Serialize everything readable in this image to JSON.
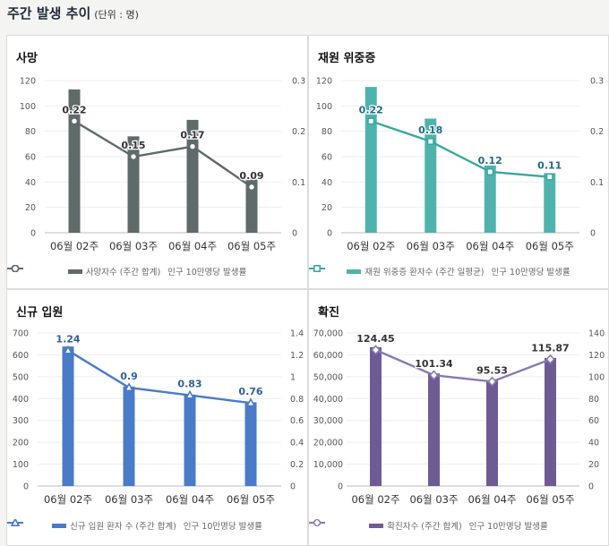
{
  "header": {
    "title": "주간 발생 추이",
    "unit": "(단위 : 명)"
  },
  "chart_data": [
    {
      "type": "bar",
      "title": "사망",
      "categories": [
        "06월 02주",
        "06월 03주",
        "06월 04주",
        "06월 05주"
      ],
      "series": [
        {
          "name": "사망자수 (주간 합계)",
          "type": "bar",
          "axis": "left",
          "values": [
            113,
            76,
            89,
            42
          ]
        },
        {
          "name": "인구 10만명당 발생률",
          "type": "line",
          "axis": "right",
          "values": [
            0.22,
            0.15,
            0.17,
            0.09
          ],
          "labels": [
            "0.22",
            "0.15",
            "0.17",
            "0.09"
          ]
        }
      ],
      "y_left": {
        "min": 0,
        "max": 120,
        "step": 20,
        "ticks": [
          "0",
          "20",
          "40",
          "60",
          "80",
          "100",
          "120"
        ]
      },
      "y_right": {
        "min": 0,
        "max": 0.3,
        "step": 0.1,
        "ticks": [
          "0",
          "0.1",
          "0.2",
          "0.3"
        ]
      },
      "colors": {
        "bar": "#5f6a6a",
        "line": "#5f6a6a",
        "label": "#333333"
      },
      "marker": "circle",
      "legend": "bottom"
    },
    {
      "type": "bar",
      "title": "재원 위중증",
      "categories": [
        "06월 02주",
        "06월 03주",
        "06월 04주",
        "06월 05주"
      ],
      "series": [
        {
          "name": "재원 위중증 환자수 (주간 일평균)",
          "type": "bar",
          "axis": "left",
          "values": [
            115,
            90,
            53,
            47
          ]
        },
        {
          "name": "인구 10만명당 발생률",
          "type": "line",
          "axis": "right",
          "values": [
            0.22,
            0.18,
            0.12,
            0.11
          ],
          "labels": [
            "0.22",
            "0.18",
            "0.12",
            "0.11"
          ]
        }
      ],
      "y_left": {
        "min": 0,
        "max": 120,
        "step": 20,
        "ticks": [
          "0",
          "20",
          "40",
          "60",
          "80",
          "100",
          "120"
        ]
      },
      "y_right": {
        "min": 0,
        "max": 0.3,
        "step": 0.1,
        "ticks": [
          "0",
          "0.1",
          "0.2",
          "0.3"
        ]
      },
      "colors": {
        "bar": "#4fb3ad",
        "line": "#3aa8a1",
        "label": "#1e6b86"
      },
      "marker": "square",
      "legend": "bottom"
    },
    {
      "type": "bar",
      "title": "신규 입원",
      "categories": [
        "06월 02주",
        "06월 03주",
        "06월 04주",
        "06월 05주"
      ],
      "series": [
        {
          "name": "신규 입원 환자 수 (주간 합계)",
          "type": "bar",
          "axis": "left",
          "values": [
            638,
            455,
            418,
            383
          ]
        },
        {
          "name": "인구 10만명당 발생률",
          "type": "line",
          "axis": "right",
          "values": [
            1.24,
            0.9,
            0.83,
            0.76
          ],
          "labels": [
            "1.24",
            "0.9",
            "0.83",
            "0.76"
          ]
        }
      ],
      "y_left": {
        "min": 0,
        "max": 700,
        "step": 100,
        "ticks": [
          "0",
          "100",
          "200",
          "300",
          "400",
          "500",
          "600",
          "700"
        ]
      },
      "y_right": {
        "min": 0,
        "max": 1.4,
        "step": 0.2,
        "ticks": [
          "0",
          "0.2",
          "0.4",
          "0.6",
          "0.8",
          "1",
          "1.2",
          "1.4"
        ]
      },
      "colors": {
        "bar": "#4a7bc8",
        "line": "#4a7bc8",
        "label": "#2f5f9e"
      },
      "marker": "triangle",
      "legend": "bottom"
    },
    {
      "type": "bar",
      "title": "확진",
      "categories": [
        "06월 02주",
        "06월 03주",
        "06월 04주",
        "06월 05주"
      ],
      "series": [
        {
          "name": "확진자수 (주간 합계)",
          "type": "bar",
          "axis": "left",
          "values": [
            63500,
            51500,
            48300,
            58600
          ]
        },
        {
          "name": "인구 10만명당 발생률",
          "type": "line",
          "axis": "right",
          "values": [
            124.45,
            101.34,
            95.53,
            115.87
          ],
          "labels": [
            "124.45",
            "101.34",
            "95.53",
            "115.87"
          ]
        }
      ],
      "y_left": {
        "min": 0,
        "max": 70000,
        "step": 10000,
        "ticks": [
          "0",
          "10,000",
          "20,000",
          "30,000",
          "40,000",
          "50,000",
          "60,000",
          "70,000"
        ]
      },
      "y_right": {
        "min": 0,
        "max": 140,
        "step": 20,
        "ticks": [
          "0",
          "20",
          "40",
          "60",
          "80",
          "100",
          "120",
          "140"
        ]
      },
      "colors": {
        "bar": "#6f5b94",
        "line": "#8a78b0",
        "label": "#333333"
      },
      "marker": "diamond",
      "legend": "bottom"
    }
  ]
}
